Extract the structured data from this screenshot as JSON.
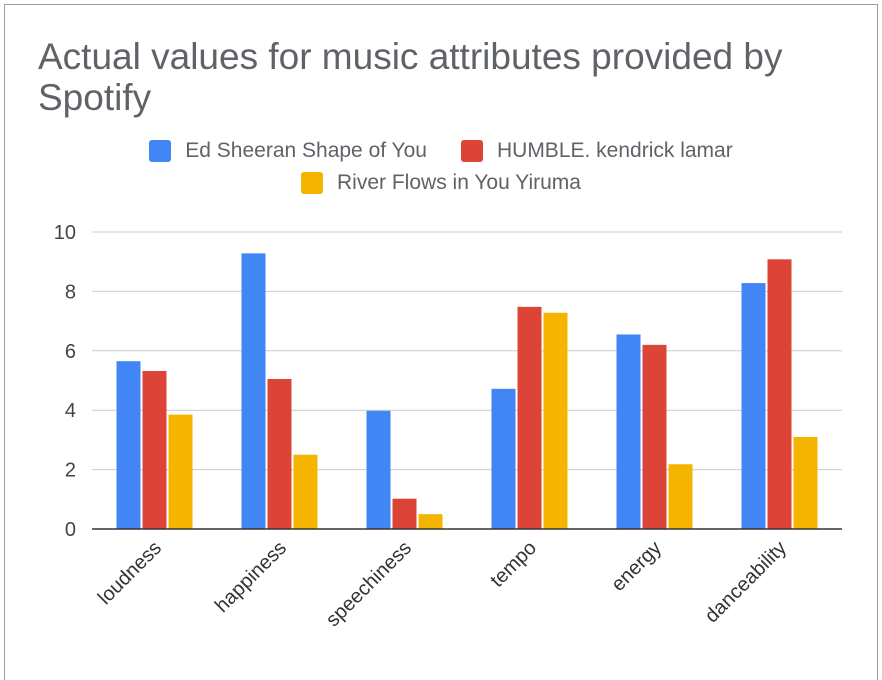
{
  "chart_data": {
    "type": "bar",
    "title": "Actual values for music attributes provided by Spotify",
    "categories": [
      "loudness",
      "happiness",
      "speechiness",
      "tempo",
      "energy",
      "danceability"
    ],
    "series": [
      {
        "name": "Ed Sheeran Shape of You",
        "color": "#4285f4",
        "values": [
          5.65,
          9.28,
          3.98,
          4.72,
          6.55,
          8.28
        ]
      },
      {
        "name": "HUMBLE. kendrick lamar",
        "color": "#db4437",
        "values": [
          5.32,
          5.05,
          1.02,
          7.48,
          6.2,
          9.08
        ]
      },
      {
        "name": "River Flows in You Yiruma",
        "color": "#f4b400",
        "values": [
          3.85,
          2.5,
          0.5,
          7.28,
          2.18,
          3.1
        ]
      }
    ],
    "ylim": [
      0,
      10
    ],
    "yticks": [
      0,
      2,
      4,
      6,
      8,
      10
    ],
    "grid": true,
    "legend": "top"
  }
}
